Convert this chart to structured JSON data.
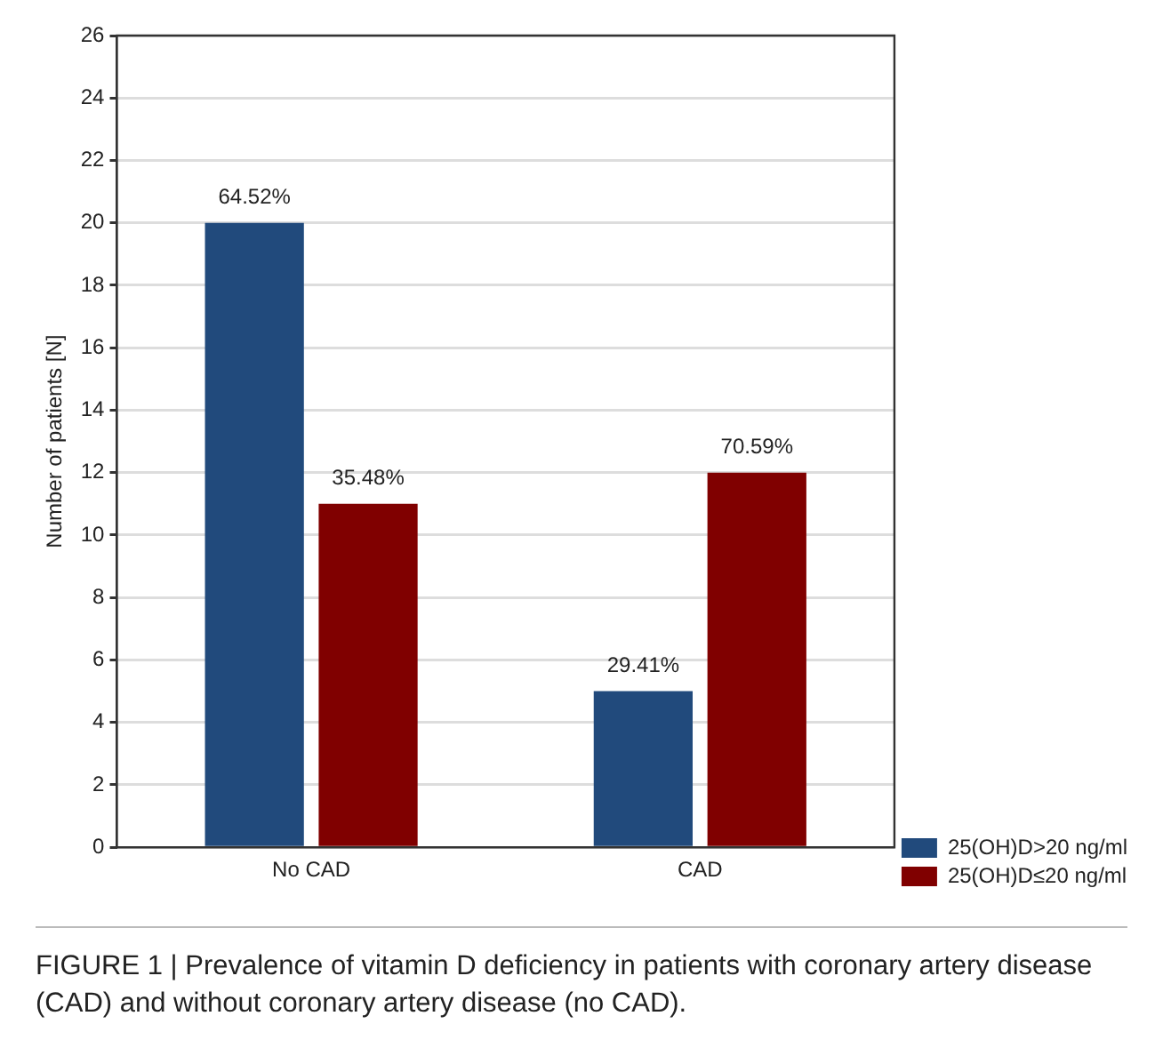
{
  "chart_data": {
    "type": "bar",
    "ylabel": "Number of patients [N]",
    "categories": [
      "No CAD",
      "CAD"
    ],
    "series": [
      {
        "name": "25(OH)D>20 ng/ml",
        "color": "#214a7c",
        "values": [
          20,
          5
        ]
      },
      {
        "name": "25(OH)D≤20 ng/ml",
        "color": "#800000",
        "values": [
          11,
          12
        ]
      }
    ],
    "ylim": [
      0,
      26
    ],
    "yticks": [
      0,
      2,
      4,
      6,
      8,
      10,
      12,
      14,
      16,
      18,
      20,
      22,
      24,
      26
    ],
    "grid": "y",
    "legend": "bottom right",
    "annotations": [
      {
        "text": "64.52%",
        "x": "No CAD",
        "y": 20
      },
      {
        "text": "35.48%",
        "x": "No CAD",
        "y": 11
      },
      {
        "text": "29.41%",
        "x": "CAD",
        "y": 5
      },
      {
        "text": "70.59%",
        "x": "CAD",
        "y": 12
      },
      "FIGURE 1 | Prevalence of vitamin D deficiency in patients with coronary artery disease (CAD) and without coronary artery disease (no CAD)."
    ]
  }
}
